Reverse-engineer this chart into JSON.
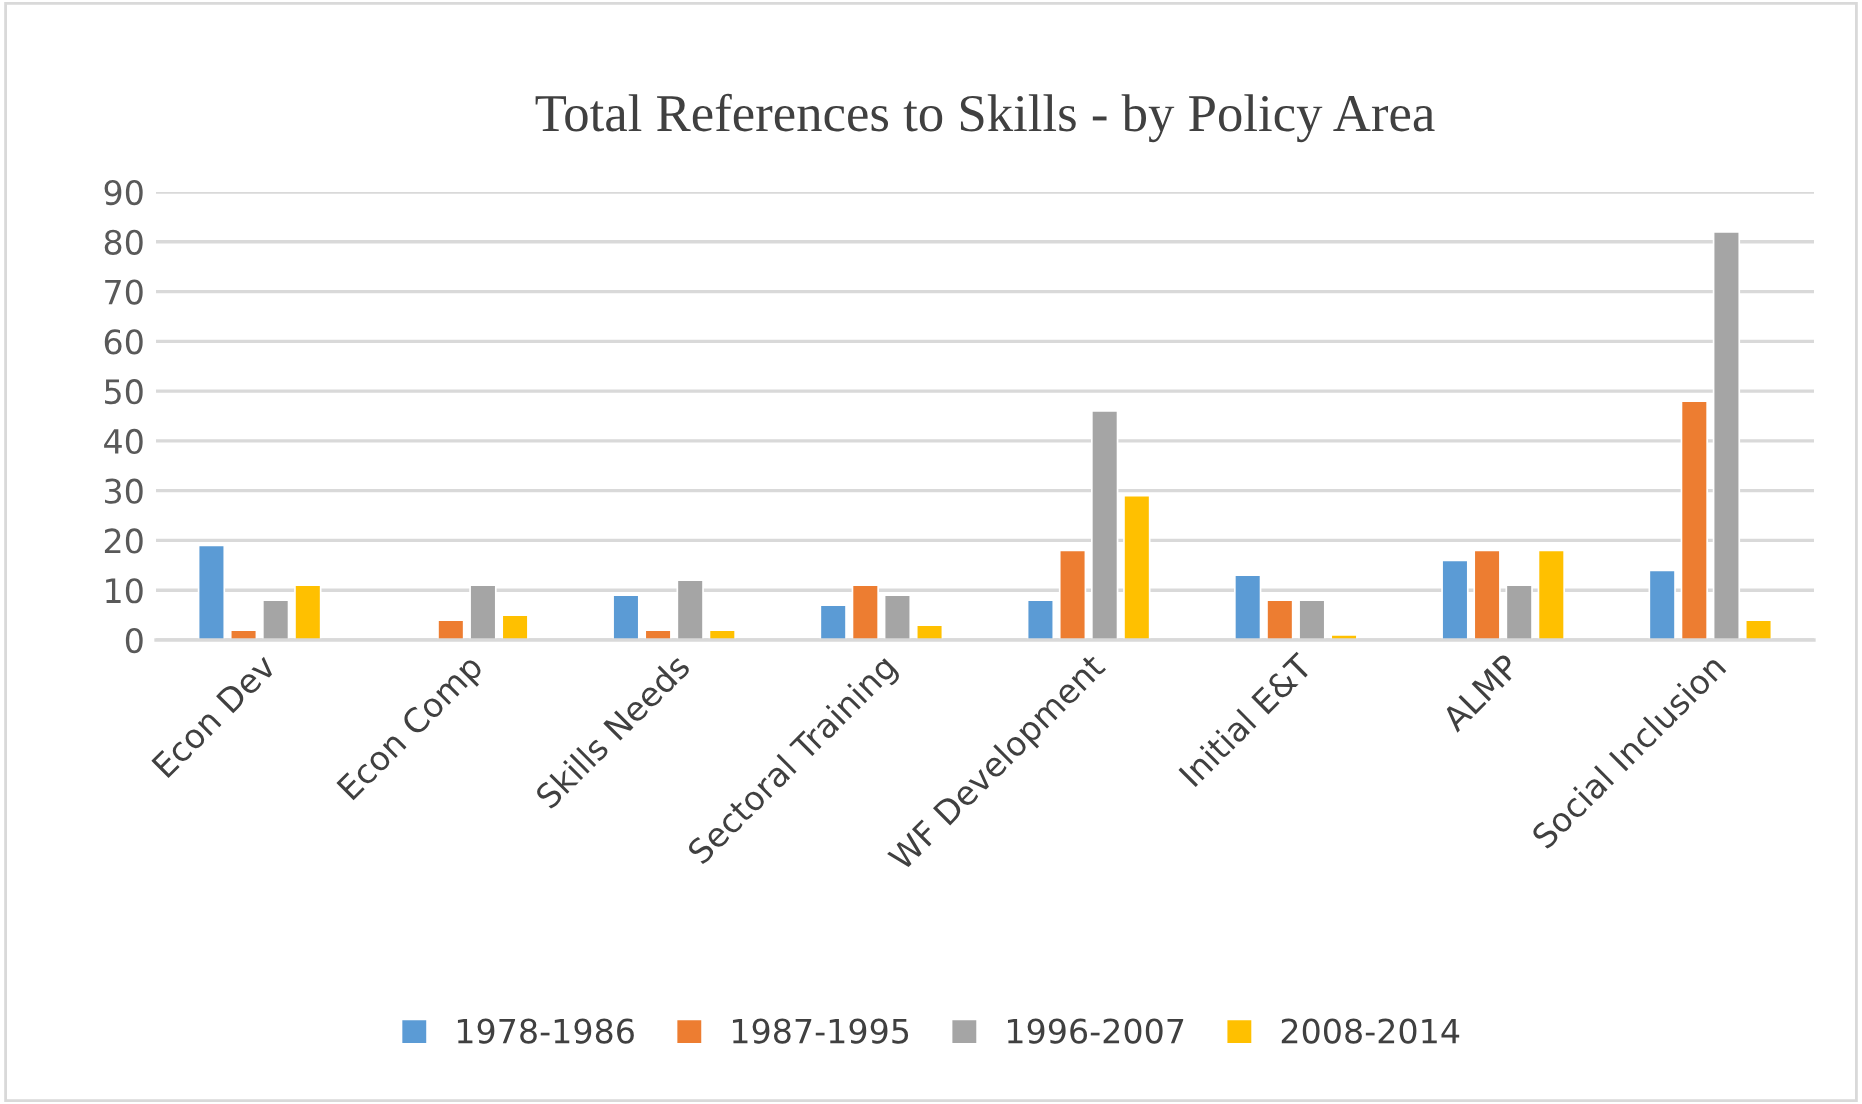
{
  "chart_data": {
    "type": "bar",
    "title": "Total References to Skills - by Policy Area",
    "categories": [
      "Econ Dev",
      "Econ Comp",
      "Skills Needs",
      "Sectoral Training",
      "WF Development",
      "Initial E&T",
      "ALMP",
      "Social Inclusion"
    ],
    "series": [
      {
        "name": "1978-1986",
        "color": "#5b9bd5",
        "values": [
          19,
          null,
          9,
          7,
          8,
          13,
          16,
          14
        ]
      },
      {
        "name": "1987-1995",
        "color": "#ed7d31",
        "values": [
          2,
          4,
          2,
          11,
          18,
          8,
          18,
          48
        ]
      },
      {
        "name": "1996-2007",
        "color": "#a5a5a5",
        "values": [
          8,
          11,
          12,
          9,
          46,
          8,
          11,
          82
        ]
      },
      {
        "name": "2008-2014",
        "color": "#ffc000",
        "values": [
          11,
          5,
          2,
          3,
          29,
          1,
          18,
          4
        ]
      }
    ],
    "ylim": [
      0,
      90
    ],
    "yticks": [
      0,
      10,
      20,
      30,
      40,
      50,
      60,
      70,
      80,
      90
    ],
    "grid": "y",
    "legend": "bottom"
  }
}
